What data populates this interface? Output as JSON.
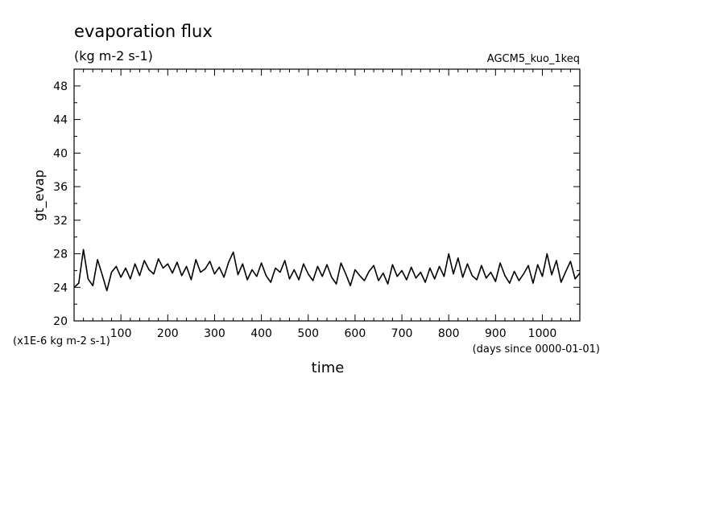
{
  "chart_data": {
    "type": "line",
    "title": "evaporation flux",
    "subtitle": "(kg m-2 s-1)",
    "run_label": "AGCM5_kuo_1keq",
    "ylabel": "gt_evap",
    "xlabel": "time",
    "x_units": "(days since 0000-01-01)",
    "y_units": "(x1E-6 kg m-2 s-1)",
    "xlim": [
      0,
      1080
    ],
    "ylim": [
      20,
      50
    ],
    "x_ticks": [
      100,
      200,
      300,
      400,
      500,
      600,
      700,
      800,
      900,
      1000
    ],
    "y_ticks": [
      20,
      24,
      28,
      32,
      36,
      40,
      44,
      48
    ],
    "grid": false,
    "series": [
      {
        "color": "#000000",
        "x": [
          0,
          10,
          20,
          30,
          40,
          50,
          60,
          70,
          80,
          90,
          100,
          110,
          120,
          130,
          140,
          150,
          160,
          170,
          180,
          190,
          200,
          210,
          220,
          230,
          240,
          250,
          260,
          270,
          280,
          290,
          300,
          310,
          320,
          330,
          340,
          350,
          360,
          370,
          380,
          390,
          400,
          410,
          420,
          430,
          440,
          450,
          460,
          470,
          480,
          490,
          500,
          510,
          520,
          530,
          540,
          550,
          560,
          570,
          580,
          590,
          600,
          610,
          620,
          630,
          640,
          650,
          660,
          670,
          680,
          690,
          700,
          710,
          720,
          730,
          740,
          750,
          760,
          770,
          780,
          790,
          800,
          810,
          820,
          830,
          840,
          850,
          860,
          870,
          880,
          890,
          900,
          910,
          920,
          930,
          940,
          950,
          960,
          970,
          980,
          990,
          1000,
          1010,
          1020,
          1030,
          1040,
          1050,
          1060,
          1070,
          1080
        ],
        "values": [
          24.0,
          24.5,
          28.5,
          25.0,
          24.2,
          27.3,
          25.5,
          23.6,
          25.8,
          26.5,
          25.2,
          26.3,
          25.0,
          26.8,
          25.4,
          27.2,
          26.1,
          25.6,
          27.4,
          26.3,
          26.8,
          25.7,
          27.0,
          25.4,
          26.5,
          24.9,
          27.3,
          25.8,
          26.2,
          27.1,
          25.6,
          26.4,
          25.2,
          27.0,
          28.2,
          25.5,
          26.8,
          24.9,
          26.1,
          25.3,
          26.9,
          25.4,
          24.6,
          26.3,
          25.8,
          27.2,
          25.0,
          26.1,
          24.9,
          26.8,
          25.6,
          24.8,
          26.5,
          25.3,
          26.7,
          25.2,
          24.4,
          26.9,
          25.6,
          24.2,
          26.1,
          25.4,
          24.8,
          25.9,
          26.6,
          24.8,
          25.7,
          24.4,
          26.7,
          25.3,
          26.0,
          24.9,
          26.4,
          25.1,
          25.8,
          24.6,
          26.3,
          25.0,
          26.5,
          25.3,
          28.0,
          25.6,
          27.5,
          25.2,
          26.8,
          25.4,
          24.9,
          26.6,
          25.1,
          25.8,
          24.7,
          26.9,
          25.4,
          24.5,
          25.9,
          24.8,
          25.6,
          26.6,
          24.5,
          26.7,
          25.3,
          28.0,
          25.5,
          27.2,
          24.6,
          25.9,
          27.1,
          25.0,
          25.7
        ]
      }
    ]
  }
}
